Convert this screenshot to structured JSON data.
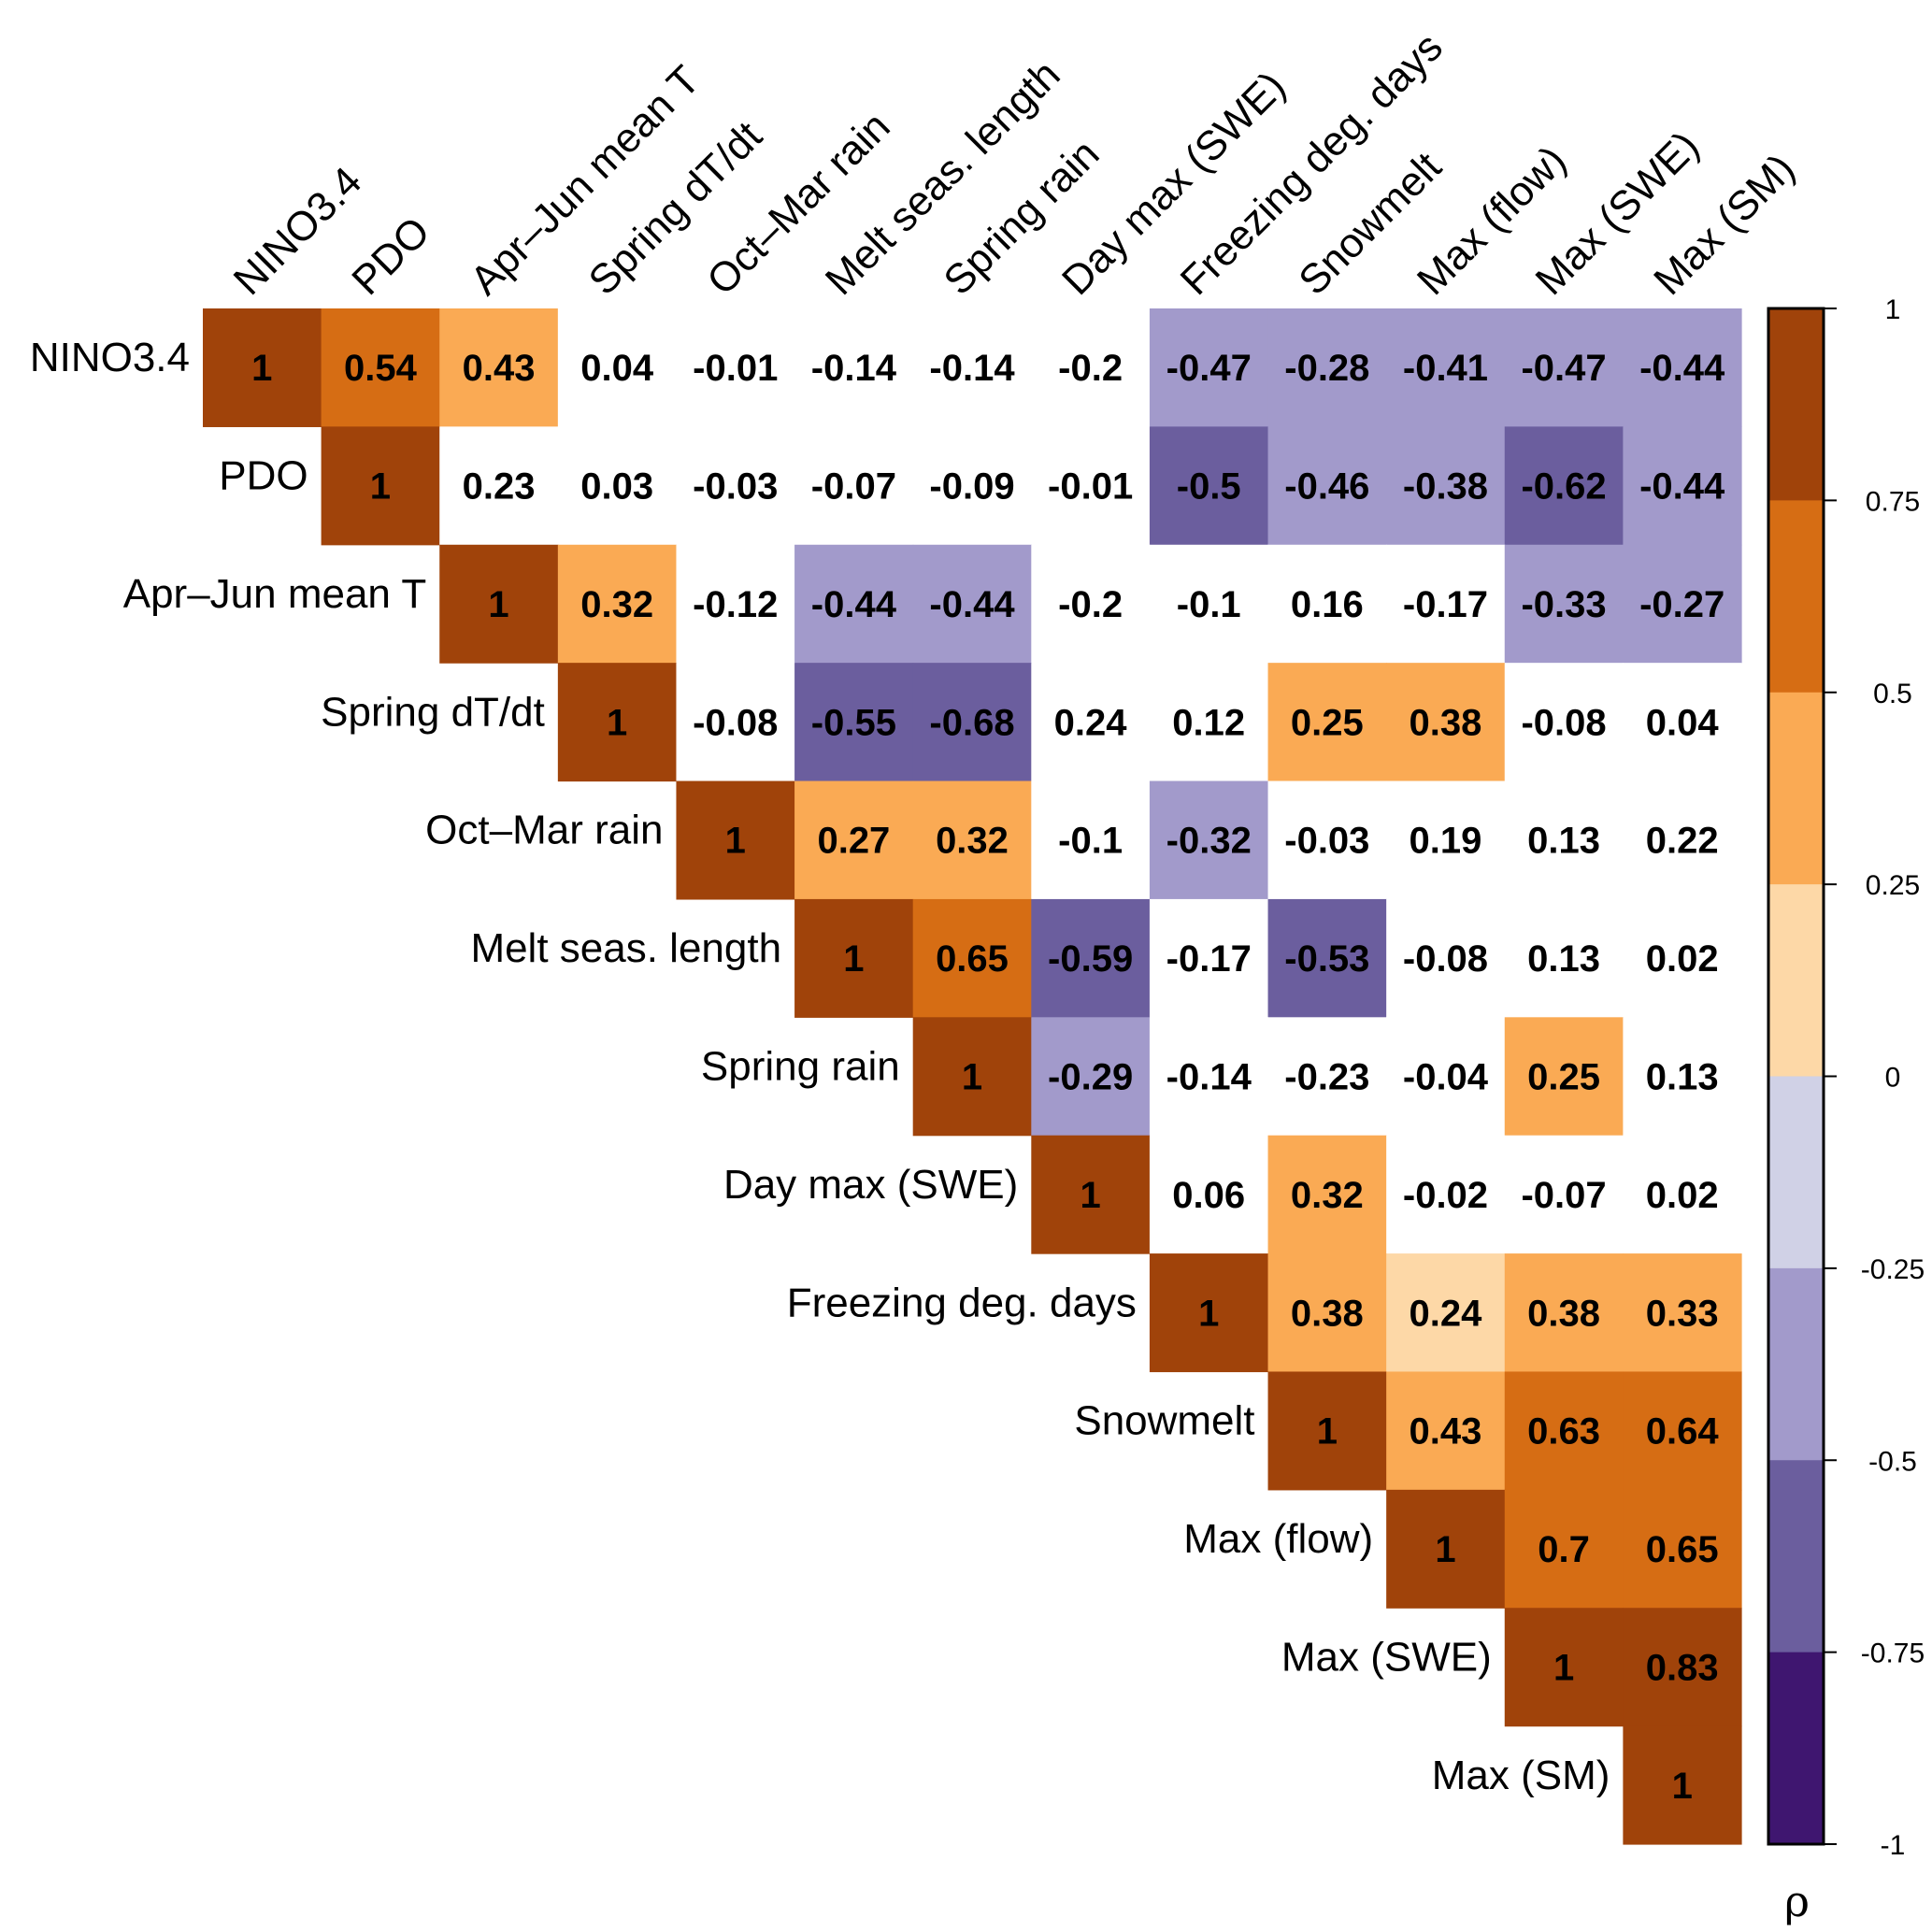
{
  "chart_data": {
    "type": "heatmap",
    "title": "",
    "subtype": "upper-triangular correlation matrix",
    "variables": [
      "NINO3.4",
      "PDO",
      "Apr–Jun mean T",
      "Spring dT/dt",
      "Oct–Mar rain",
      "Melt seas. length",
      "Spring rain",
      "Day max (SWE)",
      "Freezing deg. days",
      "Snowmelt",
      "Max (flow)",
      "Max (SWE)",
      "Max (SM)"
    ],
    "matrix": [
      [
        1,
        0.54,
        0.43,
        0.04,
        -0.01,
        -0.14,
        -0.14,
        -0.2,
        -0.47,
        -0.28,
        -0.41,
        -0.47,
        -0.44
      ],
      [
        null,
        1,
        0.23,
        0.03,
        -0.03,
        -0.07,
        -0.09,
        -0.01,
        -0.5,
        -0.46,
        -0.38,
        -0.62,
        -0.44
      ],
      [
        null,
        null,
        1,
        0.32,
        -0.12,
        -0.44,
        -0.44,
        -0.2,
        -0.1,
        0.16,
        -0.17,
        -0.33,
        -0.27
      ],
      [
        null,
        null,
        null,
        1,
        -0.08,
        -0.55,
        -0.68,
        0.24,
        0.12,
        0.25,
        0.38,
        -0.08,
        0.04
      ],
      [
        null,
        null,
        null,
        null,
        1,
        0.27,
        0.32,
        -0.1,
        -0.32,
        -0.03,
        0.19,
        0.13,
        0.22
      ],
      [
        null,
        null,
        null,
        null,
        null,
        1,
        0.65,
        -0.59,
        -0.17,
        -0.53,
        -0.08,
        0.13,
        0.02
      ],
      [
        null,
        null,
        null,
        null,
        null,
        null,
        1,
        -0.29,
        -0.14,
        -0.23,
        -0.04,
        0.25,
        0.13
      ],
      [
        null,
        null,
        null,
        null,
        null,
        null,
        null,
        1,
        0.06,
        0.32,
        -0.02,
        -0.07,
        0.02
      ],
      [
        null,
        null,
        null,
        null,
        null,
        null,
        null,
        null,
        1,
        0.38,
        0.24,
        0.38,
        0.33
      ],
      [
        null,
        null,
        null,
        null,
        null,
        null,
        null,
        null,
        null,
        1,
        0.43,
        0.63,
        0.64
      ],
      [
        null,
        null,
        null,
        null,
        null,
        null,
        null,
        null,
        null,
        null,
        1,
        0.7,
        0.65
      ],
      [
        null,
        null,
        null,
        null,
        null,
        null,
        null,
        null,
        null,
        null,
        null,
        1,
        0.83
      ],
      [
        null,
        null,
        null,
        null,
        null,
        null,
        null,
        null,
        null,
        null,
        null,
        null,
        1
      ]
    ],
    "colored": [
      [
        1,
        1,
        1,
        0,
        0,
        0,
        0,
        0,
        1,
        1,
        1,
        1,
        1
      ],
      [
        0,
        1,
        0,
        0,
        0,
        0,
        0,
        0,
        1,
        1,
        1,
        1,
        1
      ],
      [
        0,
        0,
        1,
        1,
        0,
        1,
        1,
        0,
        0,
        0,
        0,
        1,
        1
      ],
      [
        0,
        0,
        0,
        1,
        0,
        1,
        1,
        0,
        0,
        1,
        1,
        0,
        0
      ],
      [
        0,
        0,
        0,
        0,
        1,
        1,
        1,
        0,
        1,
        0,
        0,
        0,
        0
      ],
      [
        0,
        0,
        0,
        0,
        0,
        1,
        1,
        1,
        0,
        1,
        0,
        0,
        0
      ],
      [
        0,
        0,
        0,
        0,
        0,
        0,
        1,
        1,
        0,
        0,
        0,
        1,
        0
      ],
      [
        0,
        0,
        0,
        0,
        0,
        0,
        0,
        1,
        0,
        1,
        0,
        0,
        0
      ],
      [
        0,
        0,
        0,
        0,
        0,
        0,
        0,
        0,
        1,
        1,
        1,
        1,
        1
      ],
      [
        0,
        0,
        0,
        0,
        0,
        0,
        0,
        0,
        0,
        1,
        1,
        1,
        1
      ],
      [
        0,
        0,
        0,
        0,
        0,
        0,
        0,
        0,
        0,
        0,
        1,
        1,
        1
      ],
      [
        0,
        0,
        0,
        0,
        0,
        0,
        0,
        0,
        0,
        0,
        0,
        1,
        1
      ],
      [
        0,
        0,
        0,
        0,
        0,
        0,
        0,
        0,
        0,
        0,
        0,
        0,
        1
      ]
    ],
    "colorbar": {
      "title": "ρ",
      "range": [
        -1,
        1
      ],
      "ticks": [
        1,
        0.75,
        0.5,
        0.25,
        0,
        -0.25,
        -0.5,
        -0.75,
        -1
      ],
      "tick_labels": [
        "1",
        "0.75",
        "0.5",
        "0.25",
        "0",
        "-0.25",
        "-0.5",
        "-0.75",
        "-1"
      ],
      "bins": [
        {
          "from": 0.75,
          "to": 1,
          "color": "#A0430A"
        },
        {
          "from": 0.5,
          "to": 0.75,
          "color": "#D66D14"
        },
        {
          "from": 0.25,
          "to": 0.5,
          "color": "#FAAA54"
        },
        {
          "from": 0,
          "to": 0.25,
          "color": "#FDD8A7"
        },
        {
          "from": -0.25,
          "to": 0,
          "color": "#D0D1E6"
        },
        {
          "from": -0.5,
          "to": -0.25,
          "color": "#A29ACB"
        },
        {
          "from": -0.75,
          "to": -0.5,
          "color": "#6B5E9E"
        },
        {
          "from": -1,
          "to": -0.75,
          "color": "#3F1670"
        }
      ],
      "placement": "right"
    },
    "insignificant_color": "#FFFFFF"
  }
}
